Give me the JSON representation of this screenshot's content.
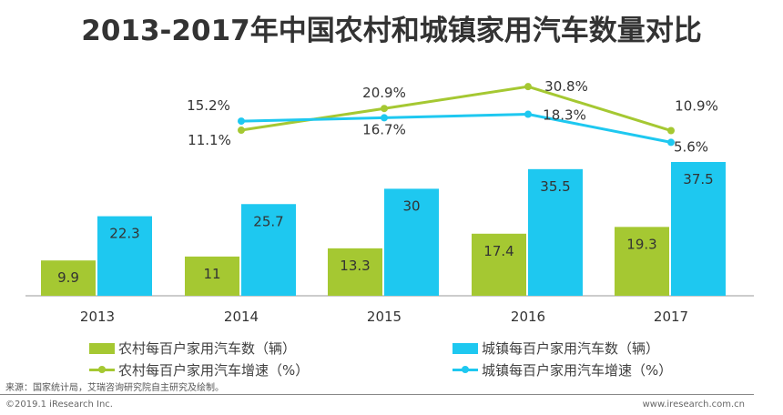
{
  "chart_data": {
    "type": "bar+line",
    "title": "2013-2017年中国农村和城镇家用汽车数量对比",
    "categories": [
      "2013",
      "2014",
      "2015",
      "2016",
      "2017"
    ],
    "series": [
      {
        "name": "农村每百户家用汽车数（辆）",
        "type": "bar",
        "color": "#a5c832",
        "values": [
          9.9,
          11,
          13.3,
          17.4,
          19.3
        ]
      },
      {
        "name": "城镇每百户家用汽车数（辆）",
        "type": "bar",
        "color": "#1ec8f0",
        "values": [
          22.3,
          25.7,
          30,
          35.5,
          37.5
        ]
      },
      {
        "name": "农村每百户家用汽车增速（%）",
        "type": "line",
        "color": "#a5c832",
        "values": [
          null,
          11.1,
          20.9,
          30.8,
          10.9
        ],
        "labels": [
          "",
          "11.1%",
          "20.9%",
          "30.8%",
          "10.9%"
        ]
      },
      {
        "name": "城镇每百户家用汽车增速（%）",
        "type": "line",
        "color": "#1ec8f0",
        "values": [
          null,
          15.2,
          16.7,
          18.3,
          5.6
        ],
        "labels": [
          "",
          "15.2%",
          "16.7%",
          "18.3%",
          "5.6%"
        ]
      }
    ],
    "legend": "bottom"
  },
  "footer": {
    "source": "来源：国家统计局，艾瑞咨询研究院自主研究及绘制。",
    "copyright": "©2019.1 iResearch Inc.",
    "site": "www.iresearch.com.cn"
  }
}
